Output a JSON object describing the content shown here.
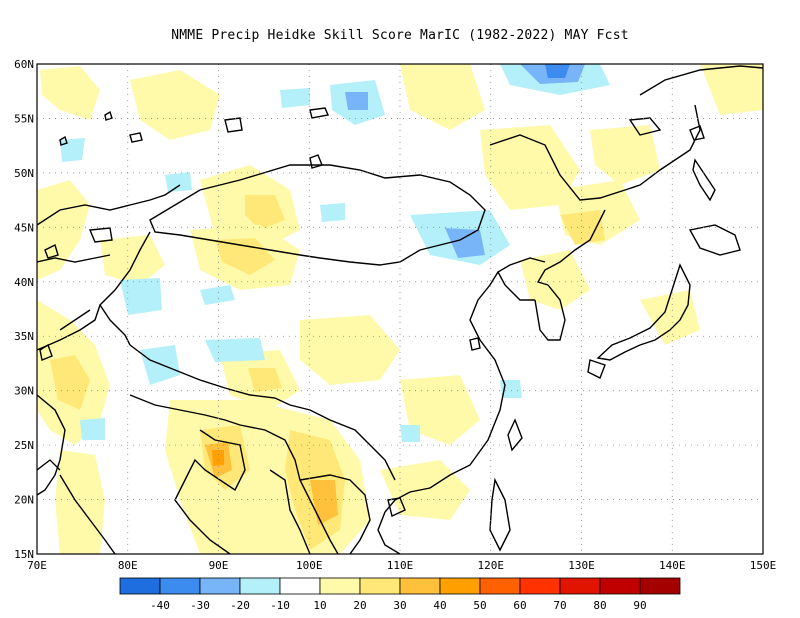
{
  "title": "NMME Precip Heidke Skill Score MarIC (1982-2022) MAY Fcst",
  "lon_labels": [
    "70E",
    "80E",
    "90E",
    "100E",
    "110E",
    "120E",
    "130E",
    "140E",
    "150E"
  ],
  "lat_labels": [
    "15N",
    "20N",
    "25N",
    "30N",
    "35N",
    "40N",
    "45N",
    "50N",
    "55N",
    "60N"
  ],
  "colorbar": {
    "labels": [
      "-40",
      "-30",
      "-20",
      "-10",
      "10",
      "20",
      "30",
      "40",
      "50",
      "60",
      "70",
      "80",
      "90"
    ],
    "colors": [
      "#1e6ee0",
      "#3c8cf0",
      "#78b4f8",
      "#b4f0fa",
      "#ffffff",
      "#fffaaa",
      "#ffe878",
      "#ffc03c",
      "#ffa000",
      "#ff6000",
      "#ff3200",
      "#e11400",
      "#c00000",
      "#a50000"
    ]
  },
  "map_style": {
    "neg_light": "#b4f0fa",
    "neg_mid": "#78b4f8",
    "neg_dark": "#3c8cf0",
    "pos_light": "#fffaaa",
    "pos_mid": "#ffe878",
    "pos_dark": "#ffc03c",
    "pos_strong": "#ffa000"
  }
}
